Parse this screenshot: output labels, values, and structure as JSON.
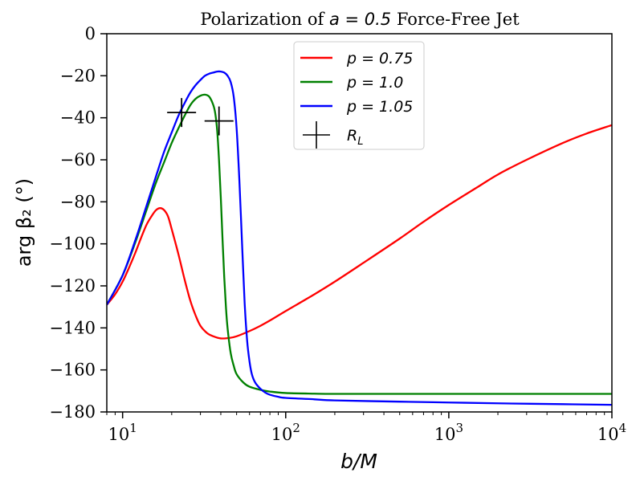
{
  "chart_data": {
    "type": "line",
    "title": "Polarization of a = 0.5 Force-Free Jet",
    "title_parts": {
      "prefix": "Polarization of ",
      "math": "a = 0.5",
      "suffix": " Force-Free Jet"
    },
    "xlabel": "b/M",
    "ylabel": "arg β₂ (°)",
    "xscale": "log",
    "xlim": [
      8,
      10000
    ],
    "ylim": [
      -180,
      0
    ],
    "yticks": [
      0,
      -20,
      -40,
      -60,
      -80,
      -100,
      -120,
      -140,
      -160,
      -180
    ],
    "ytick_labels": [
      "0",
      "−20",
      "−40",
      "−60",
      "−80",
      "−100",
      "−120",
      "−140",
      "−160",
      "−180"
    ],
    "xticks": [
      10,
      100,
      1000,
      10000
    ],
    "xtick_labels": [
      {
        "base": "10",
        "exp": "1"
      },
      {
        "base": "10",
        "exp": "2"
      },
      {
        "base": "10",
        "exp": "3"
      },
      {
        "base": "10",
        "exp": "4"
      }
    ],
    "legend_position": "top-center",
    "series": [
      {
        "name": "p = 0.75",
        "legend_label": "p = 0.75",
        "color": "#ff0000",
        "x": [
          8,
          9,
          10,
          11,
          12,
          13,
          14,
          15,
          16,
          17,
          18,
          19,
          20,
          22,
          24,
          26,
          28,
          30,
          33,
          36,
          40,
          45,
          50,
          60,
          70,
          80,
          100,
          150,
          200,
          300,
          500,
          700,
          1000,
          1500,
          2000,
          3000,
          5000,
          7000,
          10000
        ],
        "y": [
          -129,
          -124,
          -118,
          -111,
          -104,
          -97,
          -91,
          -87,
          -84,
          -83,
          -84,
          -87,
          -93,
          -105,
          -117,
          -127,
          -134,
          -139,
          -142.5,
          -144,
          -145,
          -144.8,
          -144,
          -141.5,
          -139,
          -136.5,
          -132,
          -124,
          -118,
          -109,
          -97.5,
          -89.5,
          -81.5,
          -73,
          -67,
          -60,
          -52,
          -47.5,
          -43.5
        ]
      },
      {
        "name": "p = 1.0",
        "legend_label": "p = 1.0",
        "color": "#008000",
        "x": [
          8,
          10,
          12,
          14,
          16,
          18,
          20,
          22,
          24,
          26,
          28,
          30,
          32,
          34,
          36,
          37,
          38,
          39,
          40,
          41,
          42,
          43,
          44,
          46,
          48,
          50,
          55,
          60,
          70,
          80,
          100,
          150,
          200,
          500,
          1000,
          10000
        ],
        "y": [
          -129,
          -115,
          -99,
          -84,
          -71,
          -61,
          -52,
          -45,
          -39,
          -34,
          -31,
          -29.5,
          -29,
          -30,
          -34,
          -38,
          -46,
          -60,
          -78,
          -98,
          -116,
          -130,
          -140,
          -152,
          -158,
          -162,
          -166,
          -168,
          -169.5,
          -170.3,
          -171,
          -171.3,
          -171.4,
          -171.4,
          -171.4,
          -171.4
        ]
      },
      {
        "name": "p = 1.05",
        "legend_label": "p = 1.05",
        "color": "#0000ff",
        "x": [
          8,
          10,
          12,
          14,
          16,
          18,
          20,
          22,
          24,
          26,
          28,
          30,
          32,
          34,
          36,
          38,
          40,
          42,
          44,
          46,
          48,
          50,
          52,
          54,
          56,
          58,
          60,
          62,
          65,
          70,
          75,
          80,
          90,
          100,
          150,
          200,
          500,
          1000,
          2000,
          5000,
          10000
        ],
        "y": [
          -129,
          -115,
          -98,
          -82,
          -68,
          -56,
          -47,
          -39,
          -33,
          -28,
          -24.5,
          -22,
          -20,
          -19,
          -18.5,
          -18,
          -18,
          -18.5,
          -20,
          -23,
          -30,
          -45,
          -70,
          -100,
          -128,
          -146,
          -156,
          -162,
          -166,
          -169,
          -170.8,
          -171.8,
          -172.8,
          -173.3,
          -174,
          -174.5,
          -175.1,
          -175.5,
          -175.9,
          -176.3,
          -176.6
        ]
      }
    ],
    "markers": {
      "name": "R_L",
      "legend_label": "R",
      "legend_sub": "L",
      "color": "#000000",
      "points": [
        {
          "x": 23,
          "y": -37.5
        },
        {
          "x": 39,
          "y": -41.5
        }
      ]
    }
  }
}
